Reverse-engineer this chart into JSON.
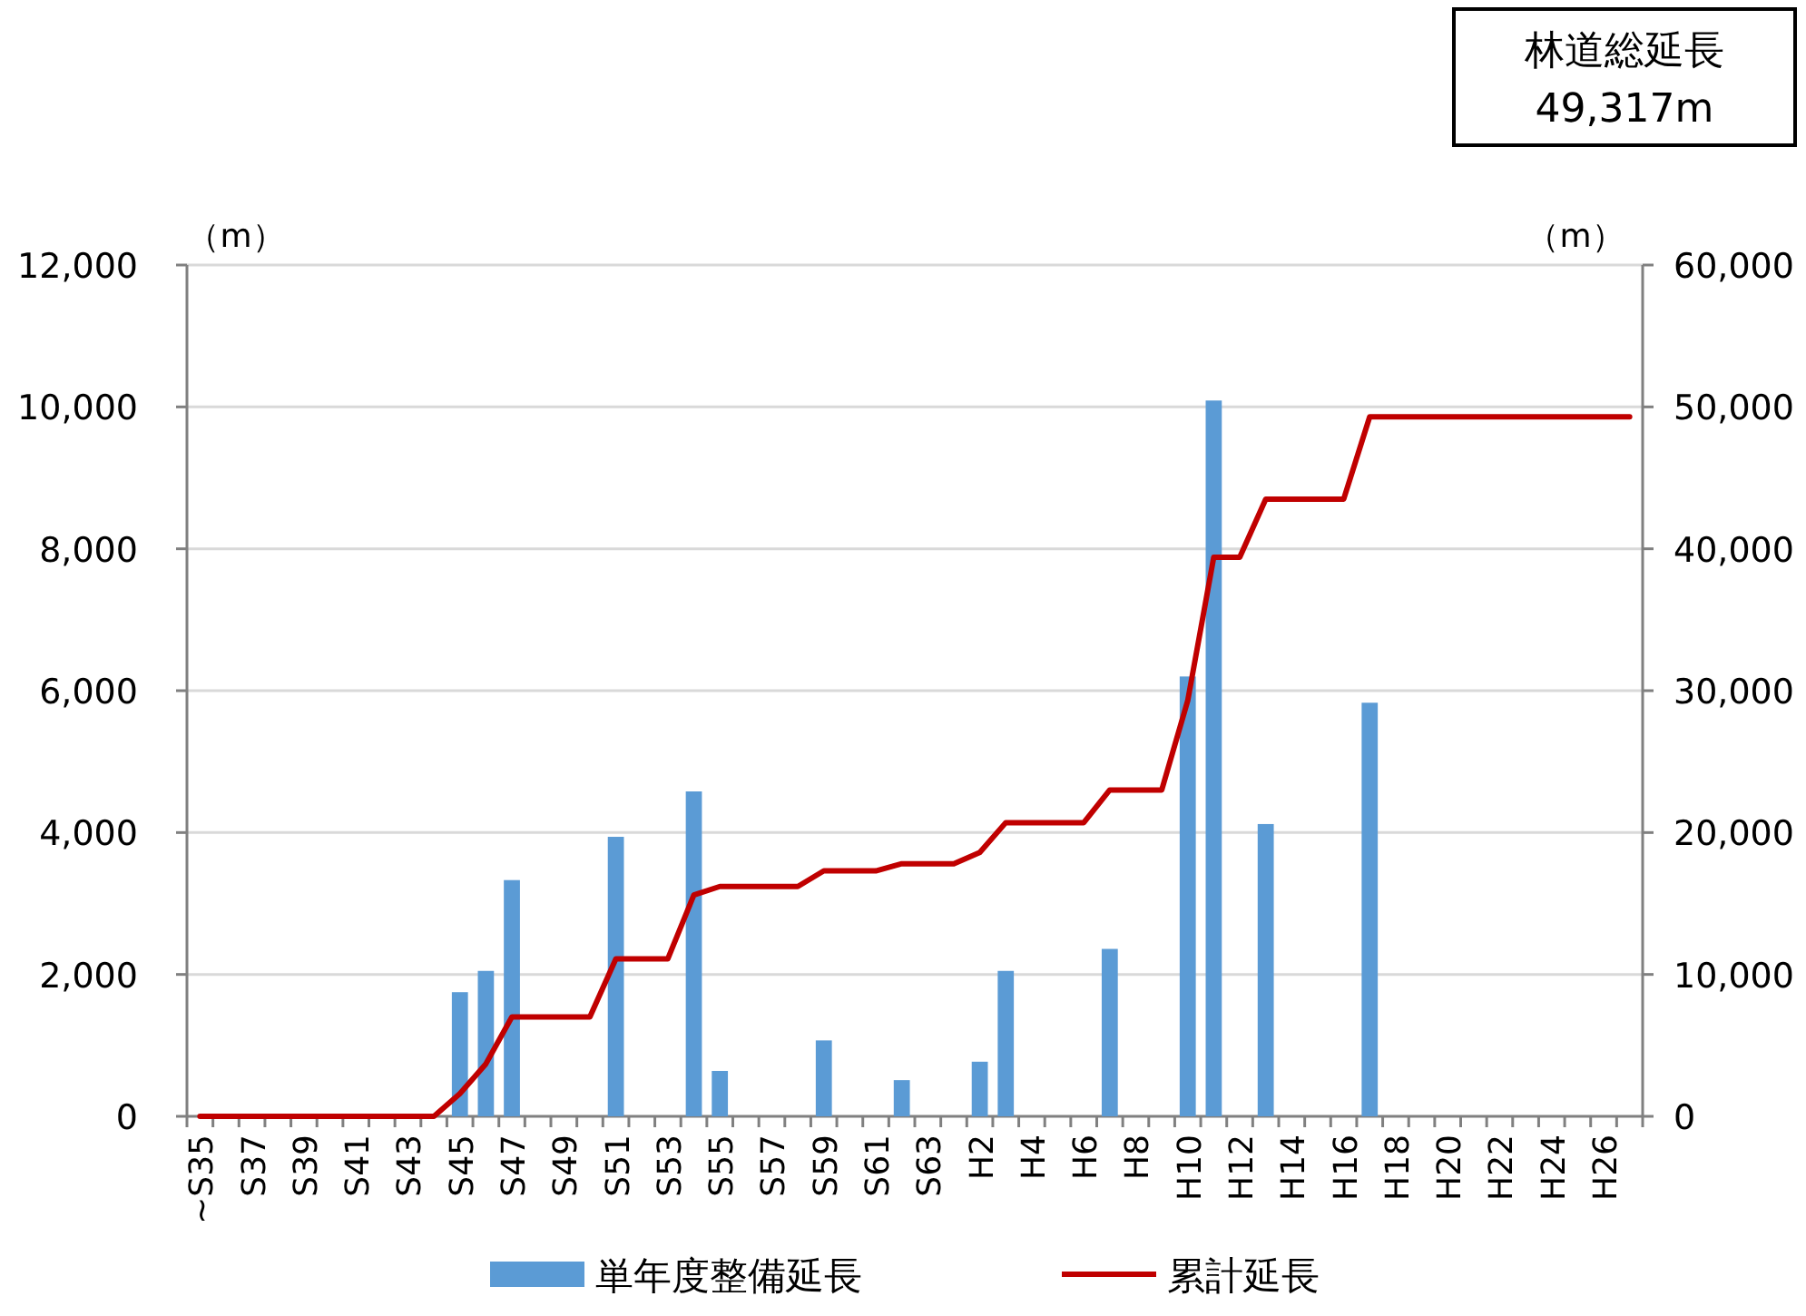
{
  "chart_data": {
    "type": "bar",
    "categories": [
      "~S35",
      null,
      "S37",
      null,
      "S39",
      null,
      "S41",
      null,
      "S43",
      null,
      "S45",
      null,
      "S47",
      null,
      "S49",
      null,
      "S51",
      null,
      "S53",
      null,
      "S55",
      null,
      "S57",
      null,
      "S59",
      null,
      "S61",
      null,
      "S63",
      null,
      "H2",
      null,
      "H4",
      null,
      "H6",
      null,
      "H8",
      null,
      "H10",
      null,
      "H12",
      null,
      "H14",
      null,
      "H16",
      null,
      "H18",
      null,
      "H20",
      null,
      "H22",
      null,
      "H24",
      null,
      "H26",
      null
    ],
    "series": [
      {
        "name": "単年度整備延長",
        "color": "#5b9bd5",
        "values": [
          0,
          0,
          0,
          0,
          0,
          0,
          0,
          0,
          0,
          0,
          1750,
          2050,
          3330,
          0,
          0,
          0,
          3940,
          0,
          0,
          4580,
          640,
          0,
          0,
          0,
          1070,
          0,
          0,
          510,
          0,
          0,
          770,
          2050,
          0,
          0,
          0,
          2360,
          0,
          0,
          6200,
          10090,
          0,
          4120,
          0,
          0,
          0,
          5830,
          0,
          0,
          0,
          0,
          0,
          0,
          0,
          0,
          0,
          0
        ]
      },
      {
        "name": "累計延長",
        "type": "line",
        "axis": "y2",
        "color": "#c00000",
        "values": [
          0,
          0,
          0,
          0,
          0,
          0,
          0,
          0,
          0,
          0,
          1600,
          3700,
          7000,
          7000,
          7000,
          7000,
          11100,
          11100,
          11100,
          15600,
          16200,
          16200,
          16200,
          16200,
          17300,
          17300,
          17300,
          17800,
          17800,
          17800,
          18600,
          20700,
          20700,
          20700,
          20700,
          23000,
          23000,
          23000,
          29300,
          39400,
          39400,
          43500,
          43500,
          43500,
          43500,
          49300,
          49300,
          49300,
          49300,
          49300,
          49300,
          49300,
          49300,
          49300,
          49300,
          49300
        ]
      }
    ],
    "ylim": [
      0,
      12000
    ],
    "yticks": [
      {
        "value": 0,
        "label": "0"
      },
      {
        "value": 2000,
        "label": "2,000"
      },
      {
        "value": 4000,
        "label": "4,000"
      },
      {
        "value": 6000,
        "label": "6,000"
      },
      {
        "value": 8000,
        "label": "8,000"
      },
      {
        "value": 10000,
        "label": "10,000"
      },
      {
        "value": 12000,
        "label": "12,000"
      }
    ],
    "y2lim": [
      0,
      60000
    ],
    "y2ticks": [
      {
        "value": 0,
        "label": "0"
      },
      {
        "value": 10000,
        "label": "10,000"
      },
      {
        "value": 20000,
        "label": "20,000"
      },
      {
        "value": 30000,
        "label": "30,000"
      },
      {
        "value": 40000,
        "label": "40,000"
      },
      {
        "value": 50000,
        "label": "50,000"
      },
      {
        "value": 60000,
        "label": "60,000"
      }
    ],
    "ylabel": "（m）",
    "y2label": "（m）",
    "grid": "y",
    "legend": "bottom",
    "annotations": [
      "林道総延長",
      "49,317m"
    ]
  }
}
